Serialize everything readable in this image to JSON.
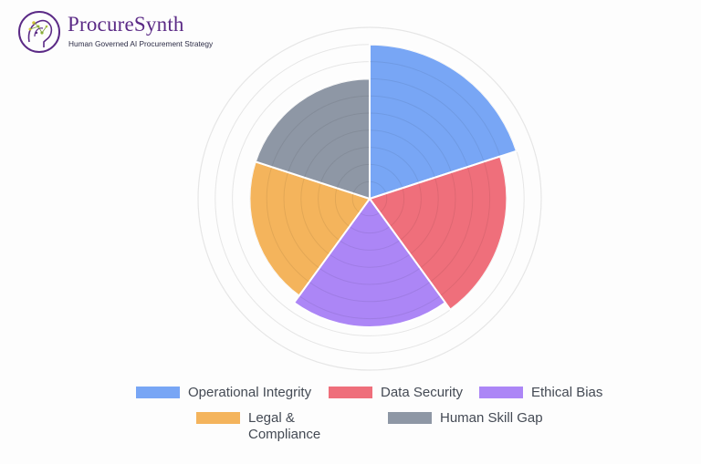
{
  "brand": {
    "name": "ProcureSynth",
    "tagline": "Human Governed AI Procurement Strategy",
    "logo_icon": "brain-circuit-icon",
    "color": "#5b2a86"
  },
  "chart_data": {
    "type": "polarArea",
    "categories": [
      "Operational Integrity",
      "Data Security",
      "Ethical Bias",
      "Legal & Compliance",
      "Human Skill Gap"
    ],
    "values": [
      9,
      8,
      7.5,
      7,
      7
    ],
    "colors": [
      "#78a6f5",
      "#ef6f7b",
      "#ac86f6",
      "#f4b45c",
      "#8e97a5"
    ],
    "r_max": 10,
    "grid": true,
    "legend_position": "bottom"
  }
}
